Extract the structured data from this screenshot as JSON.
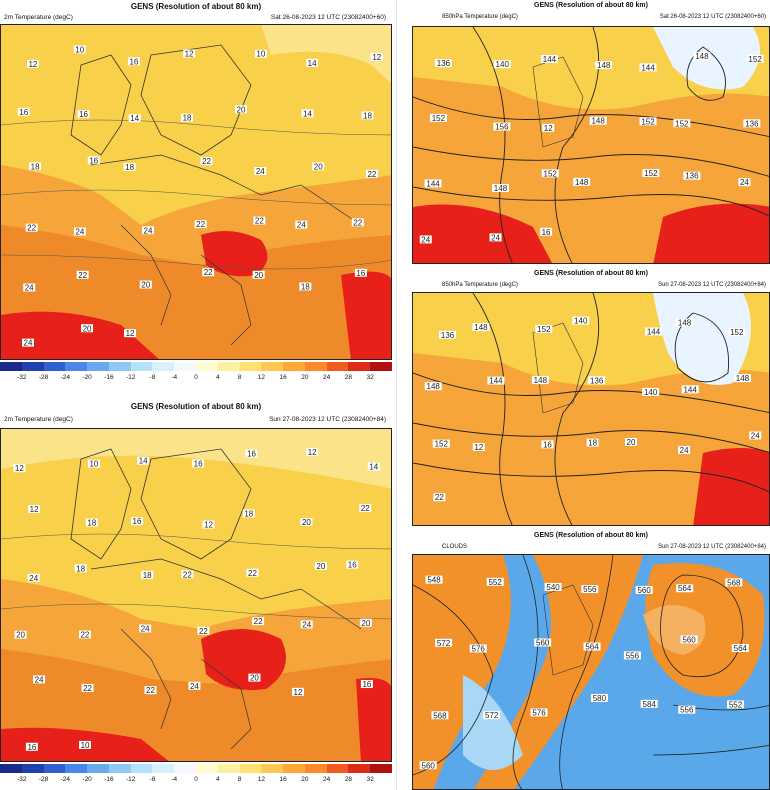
{
  "panels": {
    "top_left": {
      "title": "GENS (Resolution of about 80 km)",
      "field": "2m Temperature (degC)",
      "valid": "Sat 26-08-2023 12 UTC (23082400+60)",
      "labels": [
        "12",
        "10",
        "16",
        "12",
        "10",
        "14",
        "12",
        "16",
        "16",
        "14",
        "18",
        "20",
        "14",
        "18",
        "18",
        "16",
        "18",
        "22",
        "24",
        "20",
        "22",
        "22",
        "24",
        "24",
        "22",
        "22",
        "24",
        "22",
        "24",
        "22",
        "20",
        "22",
        "20",
        "18",
        "16",
        "24",
        "20",
        "12"
      ]
    },
    "bottom_left": {
      "title": "GENS (Resolution of about 80 km)",
      "field": "2m Temperature (degC)",
      "valid": "Sun 27-08-2023 12 UTC (23082400+84)",
      "labels": [
        "12",
        "10",
        "14",
        "16",
        "16",
        "12",
        "14",
        "12",
        "18",
        "16",
        "12",
        "18",
        "20",
        "22",
        "24",
        "18",
        "18",
        "22",
        "22",
        "20",
        "16",
        "20",
        "22",
        "24",
        "22",
        "22",
        "24",
        "20",
        "24",
        "22",
        "22",
        "24",
        "20",
        "12",
        "16",
        "16",
        "10"
      ]
    },
    "top_right": {
      "title": "GENS (Resolution of about 80 km)",
      "field": "850hPa Temperature (degC)",
      "valid": "Sat 26-08-2023 12 UTC (23082400+60)",
      "labels": [
        "136",
        "140",
        "144",
        "148",
        "144",
        "148",
        "152",
        "152",
        "156",
        "12",
        "148",
        "152",
        "152",
        "136",
        "144",
        "148",
        "152",
        "148",
        "152",
        "136",
        "24",
        "24",
        "24",
        "16"
      ]
    },
    "middle_right": {
      "title": "GENS (Resolution of about 80 km)",
      "field": "850hPa Temperature (degC)",
      "valid": "Sun 27-08-2023 12 UTC (23082400+84)",
      "labels": [
        "136",
        "148",
        "152",
        "140",
        "144",
        "148",
        "152",
        "148",
        "144",
        "148",
        "136",
        "140",
        "144",
        "148",
        "152",
        "12",
        "16",
        "18",
        "20",
        "24",
        "24",
        "22"
      ]
    },
    "bottom_right": {
      "title": "GENS (Resolution of about 80 km)",
      "field": "CLOUDS",
      "valid": "Sun 27-08-2023 12 UTC (23082400+84)",
      "labels": [
        "548",
        "552",
        "540",
        "556",
        "560",
        "564",
        "568",
        "572",
        "576",
        "560",
        "564",
        "556",
        "560",
        "564",
        "568",
        "572",
        "576",
        "580",
        "584",
        "556",
        "552",
        "560"
      ]
    }
  },
  "colorbar": {
    "ticks": [
      "-32",
      "-28",
      "-24",
      "-20",
      "-16",
      "-12",
      "-8",
      "-4",
      "0",
      "4",
      "8",
      "12",
      "16",
      "20",
      "24",
      "28",
      "32"
    ],
    "colors": [
      "#1a2a8c",
      "#2040b0",
      "#3060d0",
      "#4a86e8",
      "#6aa8f0",
      "#90c8f5",
      "#b8e0fa",
      "#d8f0fc",
      "#f4f8ff",
      "#fffad0",
      "#fff0a0",
      "#ffe070",
      "#ffc850",
      "#ffa838",
      "#ff8828",
      "#f05a1e",
      "#e02a18",
      "#b01010"
    ]
  },
  "colors": {
    "warm_bg": "#f5a53a",
    "hot": "#e8201a",
    "mild": "#f8d04a",
    "cold": "#e8f4ff",
    "sea_cold": "#5aa8ea",
    "cloud_orange": "#f2902a"
  }
}
